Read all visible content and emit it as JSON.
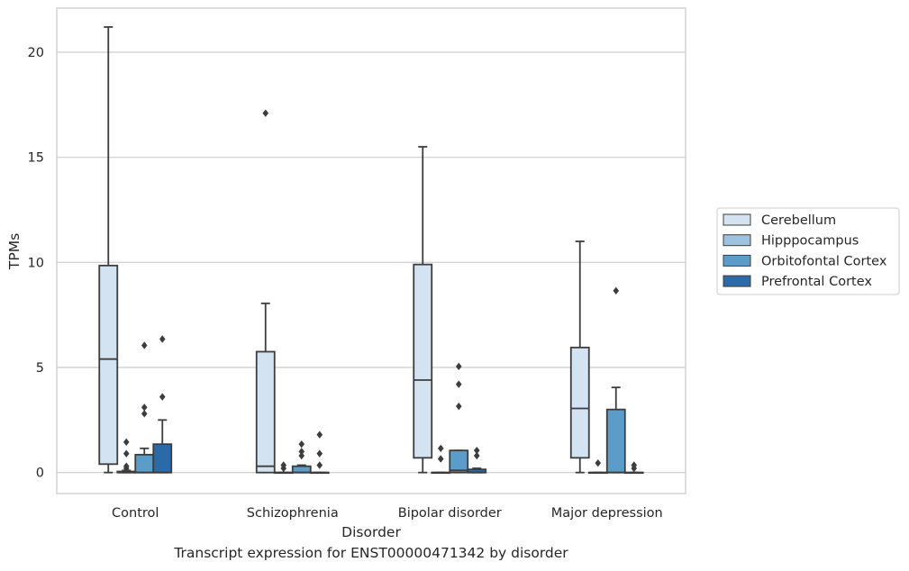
{
  "caption": "Transcript expression for ENST00000471342 by disorder",
  "chart_data": {
    "type": "box",
    "xlabel": "Disorder",
    "ylabel": "TPMs",
    "categories": [
      "Control",
      "Schizophrenia",
      "Bipolar disorder",
      "Major depression"
    ],
    "ylim": [
      -1,
      22.1
    ],
    "yticks": [
      0,
      5,
      10,
      15,
      20
    ],
    "grid": true,
    "legend_placement": "center-right",
    "series": [
      {
        "name": "Cerebellum",
        "color": "#d4e3f2",
        "boxes": [
          {
            "whisker_low": 0,
            "q1": 0.4,
            "median": 5.4,
            "q3": 9.85,
            "whisker_high": 21.2,
            "outliers": []
          },
          {
            "whisker_low": 0,
            "q1": 0,
            "median": 0.3,
            "q3": 5.75,
            "whisker_high": 8.05,
            "outliers": [
              17.1
            ]
          },
          {
            "whisker_low": 0,
            "q1": 0.7,
            "median": 4.4,
            "q3": 9.9,
            "whisker_high": 15.5,
            "outliers": []
          },
          {
            "whisker_low": 0,
            "q1": 0.7,
            "median": 3.05,
            "q3": 5.95,
            "whisker_high": 11.0,
            "outliers": []
          }
        ]
      },
      {
        "name": "Hipppocampus",
        "color": "#9ec3de",
        "boxes": [
          {
            "whisker_low": 0,
            "q1": 0,
            "median": 0,
            "q3": 0.05,
            "whisker_high": 0.1,
            "outliers": [
              0.2,
              0.3,
              0.9,
              1.45
            ]
          },
          {
            "whisker_low": 0,
            "q1": 0,
            "median": 0,
            "q3": 0,
            "whisker_high": 0,
            "outliers": [
              0.2,
              0.35
            ]
          },
          {
            "whisker_low": 0,
            "q1": 0,
            "median": 0,
            "q3": 0,
            "whisker_high": 0,
            "outliers": [
              0.65,
              1.15
            ]
          },
          {
            "whisker_low": 0,
            "q1": 0,
            "median": 0,
            "q3": 0,
            "whisker_high": 0,
            "outliers": [
              0.45
            ]
          }
        ]
      },
      {
        "name": "Orbitofontal Cortex",
        "color": "#5b9cc9",
        "boxes": [
          {
            "whisker_low": 0,
            "q1": 0,
            "median": 0,
            "q3": 0.85,
            "whisker_high": 1.15,
            "outliers": [
              2.8,
              3.1,
              6.05
            ]
          },
          {
            "whisker_low": 0,
            "q1": 0,
            "median": 0,
            "q3": 0.3,
            "whisker_high": 0.35,
            "outliers": [
              0.8,
              1.0,
              1.35
            ]
          },
          {
            "whisker_low": 0,
            "q1": 0,
            "median": 0.1,
            "q3": 1.05,
            "whisker_high": 1.05,
            "outliers": [
              3.15,
              4.2,
              5.05
            ]
          },
          {
            "whisker_low": 0,
            "q1": 0,
            "median": 0,
            "q3": 3.0,
            "whisker_high": 4.05,
            "outliers": [
              8.65
            ]
          }
        ]
      },
      {
        "name": "Prefrontal Cortex",
        "color": "#2b6aa8",
        "boxes": [
          {
            "whisker_low": 0,
            "q1": 0,
            "median": 0,
            "q3": 1.35,
            "whisker_high": 2.5,
            "outliers": [
              3.6,
              6.35
            ]
          },
          {
            "whisker_low": 0,
            "q1": 0,
            "median": 0,
            "q3": 0,
            "whisker_high": 0,
            "outliers": [
              0.35,
              0.9,
              1.8
            ]
          },
          {
            "whisker_low": 0,
            "q1": 0,
            "median": 0,
            "q3": 0.15,
            "whisker_high": 0.2,
            "outliers": [
              0.8,
              1.05
            ]
          },
          {
            "whisker_low": 0,
            "q1": 0,
            "median": 0,
            "q3": 0,
            "whisker_high": 0,
            "outliers": [
              0.2,
              0.35
            ]
          }
        ]
      }
    ]
  }
}
